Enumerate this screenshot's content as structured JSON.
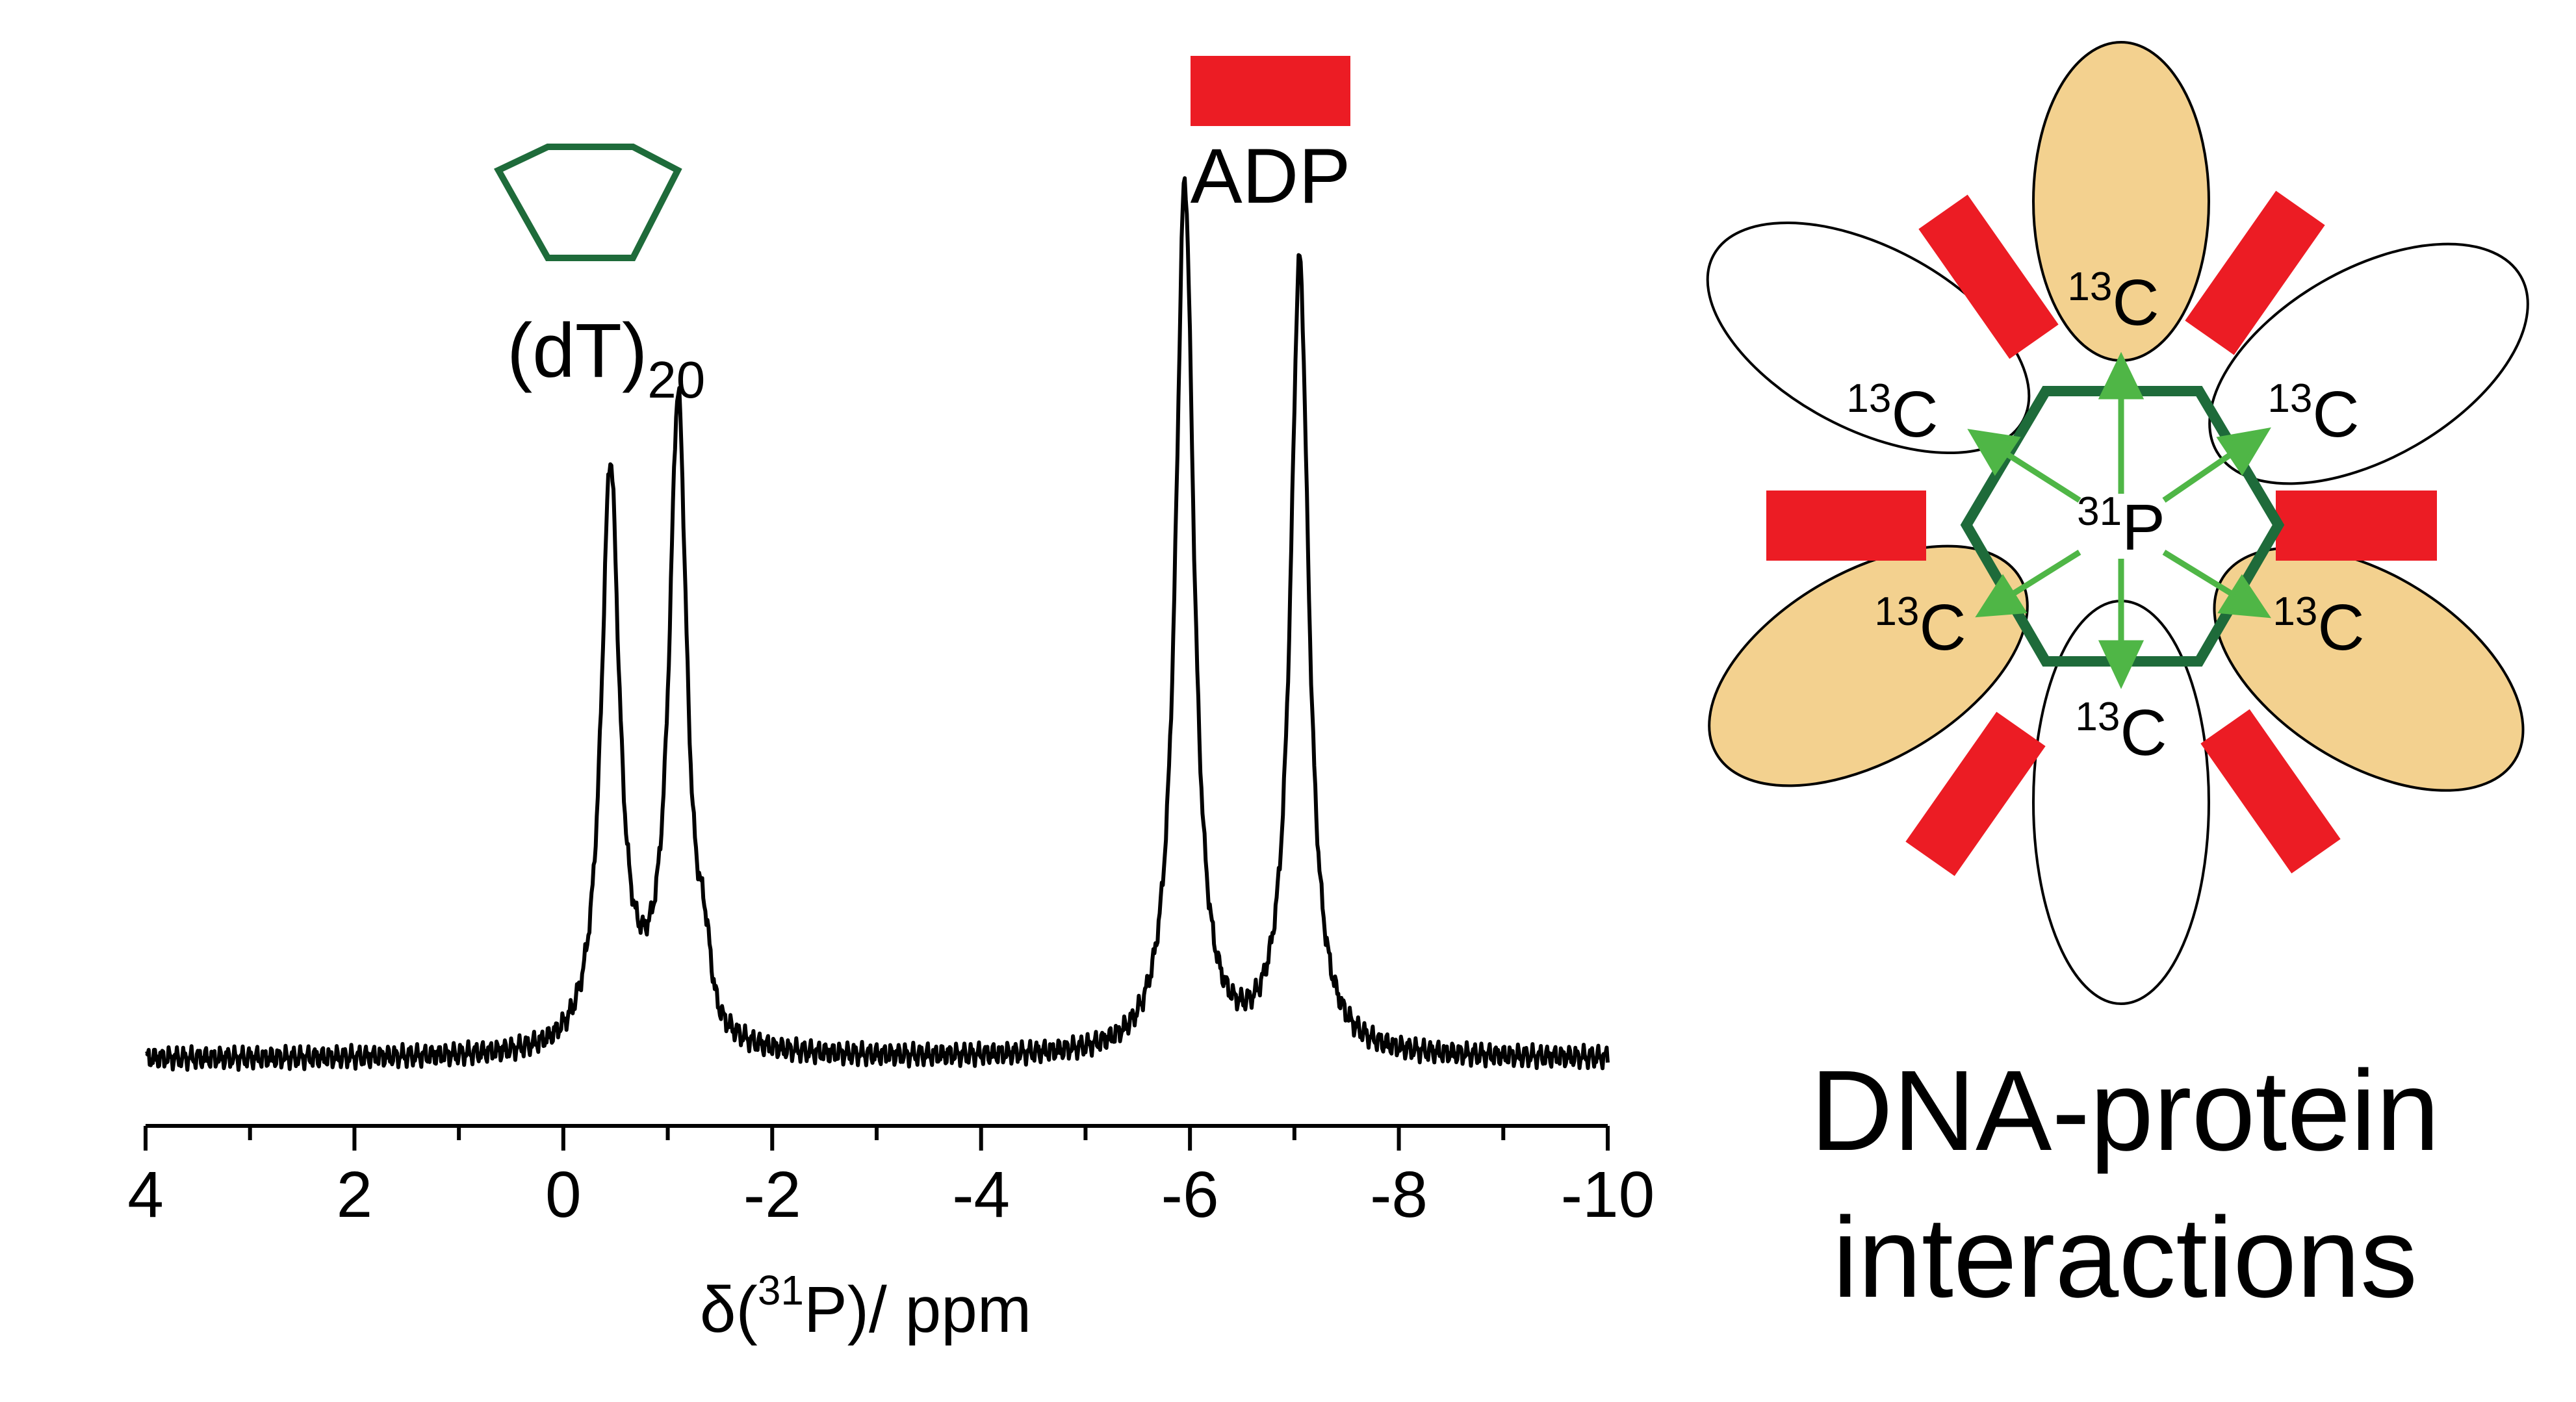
{
  "chart_data": {
    "type": "line",
    "xlabel_prefix": "δ(",
    "xlabel_sup": "31",
    "xlabel_suffix": "P)/ ppm",
    "xlim": [
      4,
      -10
    ],
    "x_ticks": [
      "4",
      "2",
      "0",
      "-2",
      "-4",
      "-6",
      "-8",
      "-10"
    ],
    "grid": false,
    "peaks": [
      {
        "position": -0.45,
        "height": 0.66,
        "assignment": "(dT)20"
      },
      {
        "position": -1.1,
        "height": 0.74,
        "assignment": "(dT)20"
      },
      {
        "position": -5.95,
        "height": 1.0,
        "assignment": "ADP"
      },
      {
        "position": -7.05,
        "height": 0.91,
        "assignment": "ADP"
      }
    ],
    "annotations": {
      "dt_label_main": "(dT)",
      "dt_label_sub": "20",
      "adp_label": "ADP"
    }
  },
  "diagram": {
    "carbon_mass": "13",
    "carbon_symbol": "C",
    "phosphorus_mass": "31",
    "phosphorus_symbol": "P",
    "dna_color": "#1e6b3a",
    "adp_color": "#ec1c24",
    "protein_fill": "#f3d18f",
    "arrow_color": "#4fb646"
  },
  "caption": {
    "line1": "DNA-protein",
    "line2": "interactions"
  }
}
